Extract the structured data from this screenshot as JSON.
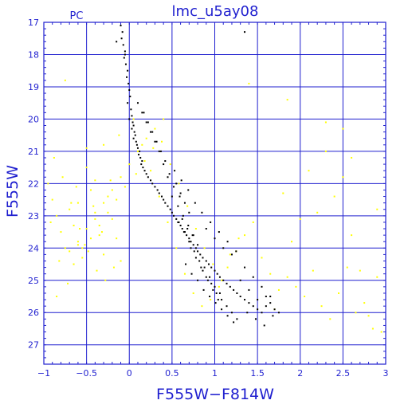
{
  "colors": {
    "axes": "#1f1fcf",
    "grid": "#1f1fcf",
    "text": "#1f1fcf",
    "black_points": "#000000",
    "yellow_points": "#ffff00"
  },
  "chart_data": {
    "type": "scatter",
    "title": "lmc_u5ay08",
    "subtitle": "PC",
    "xlabel": "F555W−F814W",
    "ylabel": "F555W",
    "xlim": [
      -1,
      3
    ],
    "ylim": [
      27.6,
      17
    ],
    "y_inverted": true,
    "grid": true,
    "x_ticks": [
      -1,
      -0.5,
      0,
      0.5,
      1,
      1.5,
      2,
      2.5,
      3
    ],
    "x_tick_labels": [
      "−1",
      "−0.5",
      "0",
      "0.5",
      "1",
      "1.5",
      "2",
      "2.5",
      "3"
    ],
    "y_ticks": [
      17,
      18,
      19,
      20,
      21,
      22,
      23,
      24,
      25,
      26,
      27
    ],
    "y_tick_labels": [
      "17",
      "18",
      "19",
      "20",
      "21",
      "22",
      "23",
      "24",
      "25",
      "26",
      "27"
    ],
    "series": [
      {
        "color": "#000000",
        "x": [
          -0.1,
          -0.08,
          -0.09,
          -0.07,
          -0.05,
          -0.06,
          -0.04,
          -0.02,
          -0.03,
          -0.01,
          0.0,
          0.01,
          -0.02,
          0.02,
          0.03,
          0.0,
          0.04,
          0.05,
          0.03,
          0.06,
          0.07,
          0.05,
          0.08,
          0.09,
          0.1,
          0.12,
          0.11,
          0.13,
          0.15,
          0.14,
          0.16,
          0.18,
          0.2,
          0.22,
          0.25,
          0.27,
          0.3,
          0.33,
          0.35,
          0.38,
          0.4,
          0.42,
          0.45,
          0.48,
          0.5,
          0.52,
          0.55,
          0.57,
          0.6,
          0.62,
          0.65,
          0.67,
          0.7,
          0.72,
          0.75,
          0.78,
          0.8,
          0.83,
          0.86,
          0.9,
          0.93,
          0.96,
          1.0,
          1.03,
          1.06,
          1.1,
          1.14,
          1.18,
          1.22,
          1.26,
          1.3,
          1.35,
          1.4,
          1.45,
          1.5,
          1.55,
          1.6,
          1.65,
          1.7,
          1.75,
          0.55,
          0.6,
          0.65,
          0.7,
          0.62,
          0.68,
          0.74,
          0.8,
          0.58,
          0.64,
          0.7,
          0.76,
          0.82,
          0.88,
          0.94,
          1.0,
          1.06,
          0.72,
          0.78,
          0.84,
          0.9,
          0.96,
          1.02,
          1.08,
          1.14,
          1.2,
          1.26,
          0.66,
          0.73,
          0.8,
          0.87,
          0.94,
          1.01,
          1.08,
          1.15,
          1.22,
          0.5,
          0.57,
          0.63,
          0.69,
          0.75,
          0.45,
          0.52,
          0.59,
          0.4,
          0.47,
          0.35,
          0.42,
          0.3,
          0.37,
          0.25,
          0.32,
          0.2,
          0.27,
          0.15,
          0.22,
          0.1,
          0.17,
          1.3,
          1.4,
          1.5,
          1.6,
          1.35,
          1.45,
          1.55,
          1.65,
          1.2,
          1.1,
          1.0,
          0.9,
          0.85,
          0.95,
          1.05,
          1.15,
          1.25,
          0.77,
          0.69,
          0.61,
          0.53,
          1.38,
          1.48,
          1.58,
          1.68,
          -0.05,
          -0.15,
          1.35,
          0.86,
          0.92,
          0.98,
          1.04
        ],
        "y": [
          17.1,
          17.3,
          17.5,
          17.7,
          17.9,
          18.1,
          18.3,
          18.5,
          18.7,
          18.9,
          19.1,
          19.3,
          19.5,
          19.7,
          19.9,
          20.0,
          20.1,
          20.2,
          20.3,
          20.4,
          20.5,
          20.6,
          20.7,
          20.8,
          20.9,
          21.0,
          21.1,
          21.2,
          21.3,
          21.4,
          21.5,
          21.6,
          21.7,
          21.8,
          21.9,
          22.0,
          22.1,
          22.2,
          22.3,
          22.4,
          22.5,
          22.6,
          22.7,
          22.8,
          22.9,
          23.0,
          23.1,
          23.2,
          23.3,
          23.4,
          23.5,
          23.6,
          23.7,
          23.8,
          23.9,
          24.0,
          24.1,
          24.2,
          24.3,
          24.4,
          24.5,
          24.6,
          24.7,
          24.8,
          24.9,
          25.0,
          25.1,
          25.2,
          25.3,
          25.4,
          25.5,
          25.6,
          25.7,
          25.8,
          25.9,
          26.0,
          25.5,
          25.7,
          25.9,
          26.0,
          22.0,
          22.3,
          22.6,
          22.9,
          23.1,
          23.4,
          23.6,
          23.9,
          23.2,
          23.5,
          23.8,
          24.1,
          24.4,
          24.6,
          24.9,
          25.2,
          25.4,
          24.0,
          24.3,
          24.6,
          24.9,
          25.1,
          25.4,
          25.6,
          25.8,
          26.0,
          26.2,
          24.5,
          24.8,
          25.0,
          25.3,
          25.5,
          25.7,
          25.9,
          26.1,
          26.3,
          22.4,
          22.7,
          23.0,
          23.3,
          23.6,
          21.8,
          22.1,
          22.4,
          21.4,
          21.7,
          21.0,
          21.3,
          20.7,
          21.0,
          20.4,
          20.7,
          20.1,
          20.4,
          19.8,
          20.1,
          19.5,
          19.8,
          25.0,
          25.3,
          25.6,
          25.8,
          24.6,
          24.9,
          25.2,
          25.5,
          24.2,
          24.0,
          23.7,
          23.4,
          22.9,
          23.2,
          23.5,
          23.8,
          24.1,
          22.6,
          22.2,
          21.9,
          21.6,
          26.0,
          26.2,
          26.4,
          26.1,
          18.0,
          17.6,
          17.3,
          24.7,
          25.0,
          25.3,
          25.6
        ]
      },
      {
        "color": "#ffff00",
        "x": [
          -0.95,
          -0.9,
          -0.85,
          -0.8,
          -0.75,
          -0.7,
          -0.65,
          -0.6,
          -0.55,
          -0.5,
          -0.45,
          -0.4,
          -0.35,
          -0.3,
          -0.25,
          -0.2,
          -0.15,
          -0.1,
          -0.88,
          -0.78,
          -0.68,
          -0.58,
          -0.48,
          -0.38,
          -0.28,
          -0.18,
          -0.92,
          -0.82,
          -0.72,
          -0.62,
          -0.52,
          -0.42,
          -0.32,
          -0.22,
          -0.12,
          0.05,
          0.15,
          0.25,
          0.35,
          0.45,
          0.55,
          0.65,
          0.75,
          0.85,
          0.95,
          1.05,
          1.15,
          1.25,
          1.35,
          1.45,
          1.55,
          1.65,
          1.75,
          1.85,
          1.95,
          2.05,
          2.15,
          2.25,
          2.35,
          2.45,
          2.55,
          2.65,
          2.75,
          2.85,
          2.95,
          2.3,
          2.4,
          2.5,
          2.6,
          2.7,
          2.8,
          2.9,
          2.2,
          2.1,
          2.0,
          1.9,
          1.8,
          1.7,
          -0.7,
          -0.6,
          -0.5,
          -0.4,
          -0.3,
          -0.2,
          -0.1,
          0.0,
          0.1,
          0.2,
          0.3,
          0.4,
          -0.65,
          -0.55,
          -0.45,
          -0.35,
          -0.25,
          -0.15,
          -0.05,
          0.08,
          0.18,
          0.28,
          0.38,
          0.48,
          0.58,
          0.68,
          0.78,
          0.88,
          0.98,
          1.08,
          1.18,
          1.28,
          -0.6,
          -0.5,
          -0.4,
          -0.3,
          2.6,
          2.3,
          1.85,
          -0.75,
          1.4,
          2.5,
          2.9,
          -0.85
        ],
        "y": [
          22.0,
          22.5,
          23.0,
          23.5,
          24.0,
          22.8,
          23.3,
          23.8,
          24.3,
          21.5,
          22.2,
          22.9,
          23.6,
          24.2,
          22.4,
          23.1,
          23.7,
          24.4,
          21.2,
          21.8,
          22.6,
          23.4,
          24.1,
          24.7,
          25.0,
          24.6,
          23.2,
          24.4,
          25.1,
          22.1,
          23.9,
          22.7,
          23.5,
          21.9,
          20.5,
          20.0,
          20.8,
          21.6,
          22.4,
          23.2,
          24.0,
          24.8,
          25.4,
          25.8,
          25.6,
          25.2,
          24.6,
          24.1,
          23.6,
          23.2,
          24.3,
          24.8,
          25.3,
          24.9,
          25.2,
          25.5,
          24.7,
          25.8,
          26.2,
          25.4,
          24.6,
          26.0,
          25.7,
          26.5,
          26.6,
          20.1,
          22.4,
          21.8,
          23.6,
          24.7,
          26.1,
          24.9,
          22.9,
          21.6,
          23.1,
          23.8,
          22.3,
          25.9,
          24.1,
          23.9,
          23.4,
          23.1,
          22.6,
          22.2,
          21.8,
          21.4,
          21.0,
          20.6,
          20.3,
          20.0,
          24.5,
          24.0,
          23.7,
          23.3,
          22.9,
          22.5,
          22.1,
          21.7,
          21.3,
          20.9,
          20.7,
          21.4,
          22.0,
          22.7,
          23.4,
          24.0,
          24.5,
          25.0,
          24.2,
          23.7,
          22.6,
          20.9,
          21.9,
          20.8,
          21.2,
          21.0,
          19.4,
          18.8,
          18.9,
          20.3,
          22.8,
          25.5
        ]
      }
    ]
  }
}
